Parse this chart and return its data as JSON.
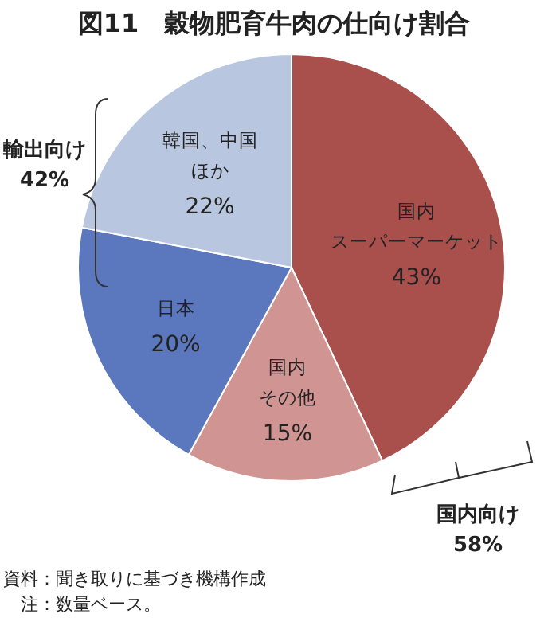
{
  "chart_data": {
    "type": "pie",
    "title": "図11　穀物肥育牛肉の仕向け割合",
    "categories": [
      "国内スーパーマーケット",
      "国内その他",
      "日本",
      "韓国、中国ほか"
    ],
    "values": [
      43,
      15,
      20,
      22
    ],
    "colors": [
      "#a9504d",
      "#d09493",
      "#5b77bd",
      "#b9c6e0"
    ],
    "value_labels": [
      "43%",
      "15%",
      "20%",
      "22%"
    ],
    "annotations": [
      "輸出向け",
      "42%",
      "国内向け",
      "58%",
      "資料：聞き取りに基づき機構作成",
      "　注：数量ベース。"
    ]
  }
}
